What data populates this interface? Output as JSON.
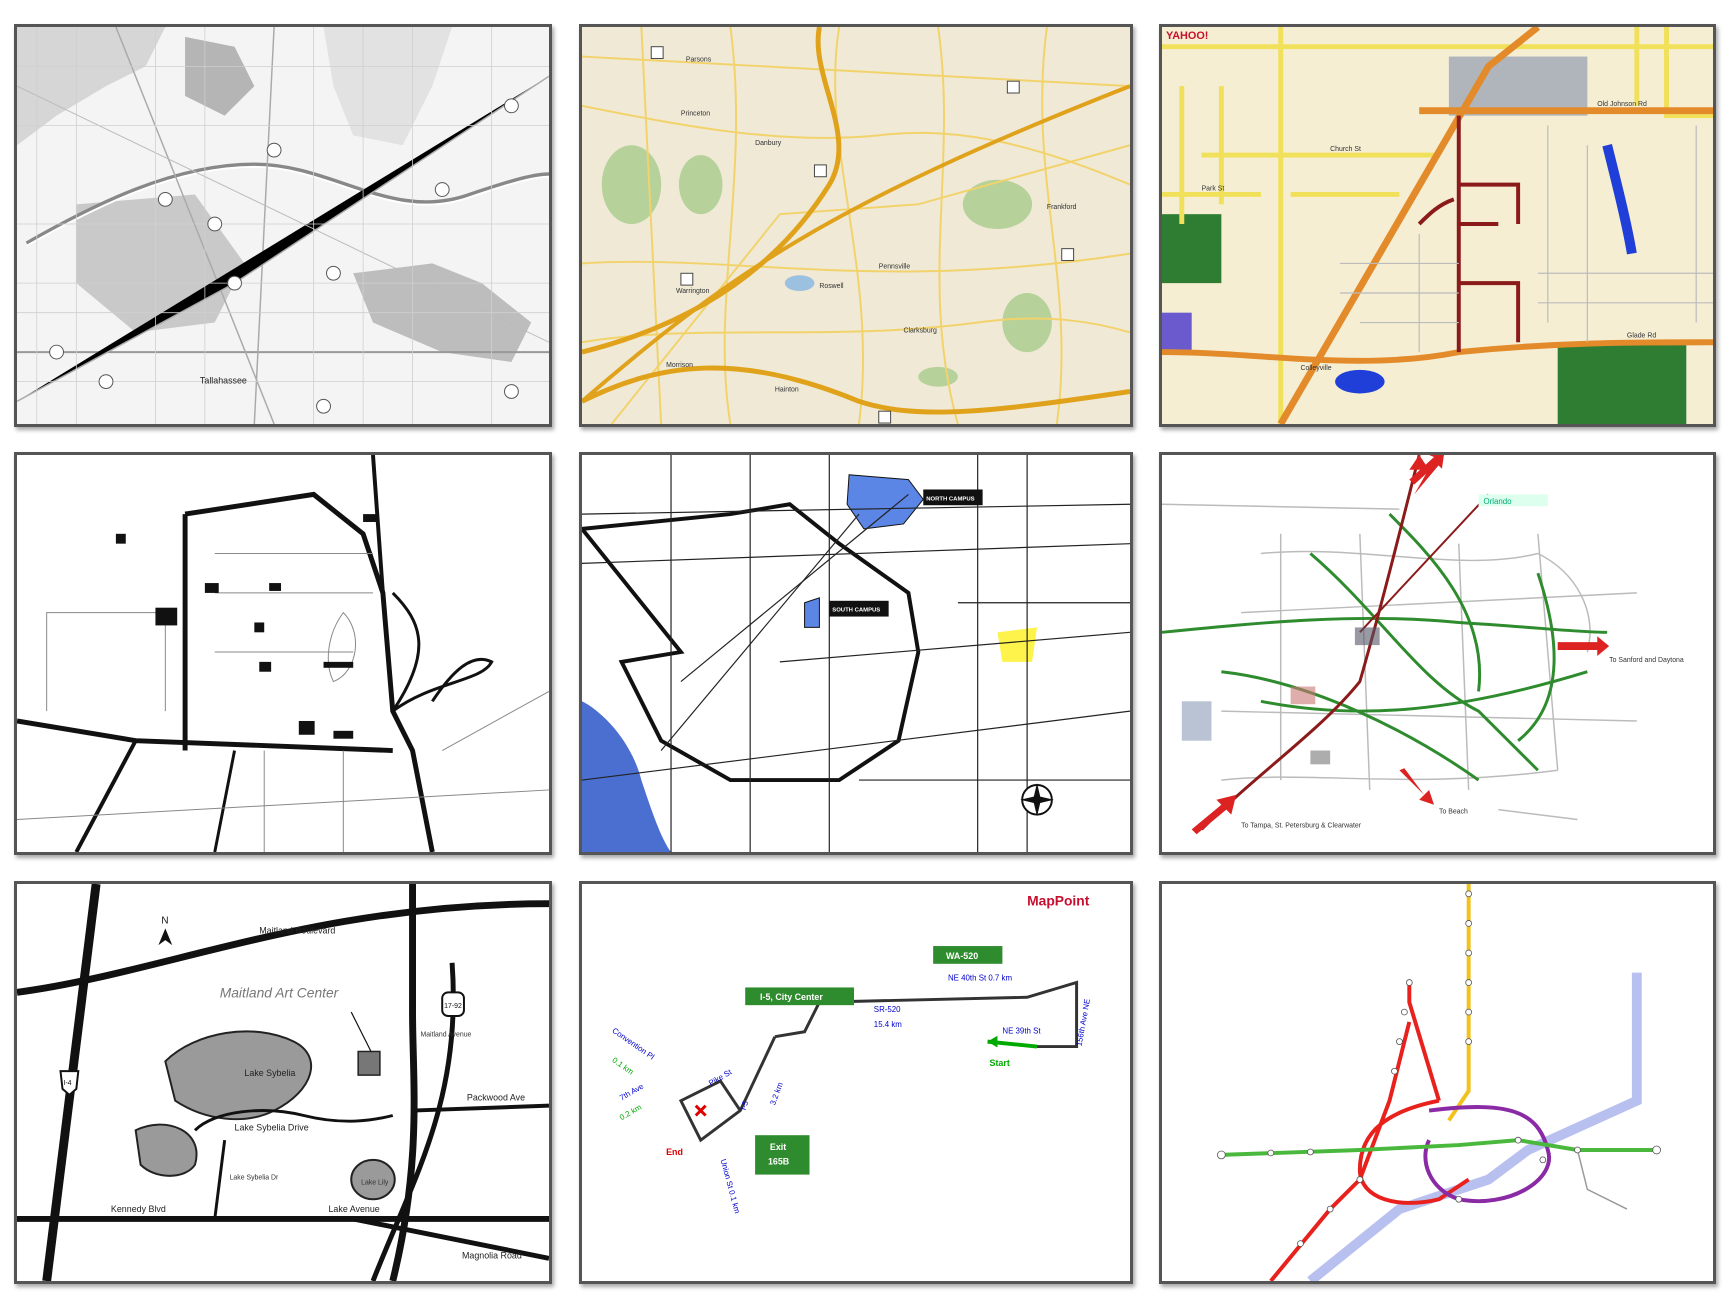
{
  "panels": [
    {
      "id": "p1",
      "labels": {
        "city": "Tallahassee"
      }
    },
    {
      "id": "p2",
      "labels": {
        "a": "Parsons",
        "b": "Danbury",
        "c": "Princeton",
        "d": "Roswell",
        "e": "Clarksburg",
        "f": "Pennsville",
        "g": "Warrington",
        "h": "Frankford",
        "i": "Morrison",
        "j": "Hainton"
      }
    },
    {
      "id": "p3",
      "labels": {
        "brand": "YAHOO!",
        "road1": "Old Johnson Rd",
        "road2": "Glade Rd",
        "road3": "Church St",
        "road4": "Park St",
        "road5": "Colleyville"
      }
    },
    {
      "id": "p4",
      "labels": {}
    },
    {
      "id": "p5",
      "labels": {
        "campus1": "NORTH CAMPUS",
        "campus2": "SOUTH CAMPUS"
      }
    },
    {
      "id": "p6",
      "labels": {
        "l1": "Orlando",
        "l2": "To Sanford and Daytona",
        "l3": "To Tampa, St. Petersburg & Clearwater",
        "l4": "To Beach"
      }
    },
    {
      "id": "p7",
      "labels": {
        "north": "N",
        "title": "Maitland Art Center",
        "lake": "Lake Sybelia",
        "lily": "Lake Lily",
        "blvd": "Maitland Boulevard",
        "ave": "Maitland Avenue",
        "packwood": "Packwood Ave",
        "sybdrive": "Lake Sybelia Drive",
        "kennedy": "Kennedy Blvd",
        "lakeave": "Lake Avenue",
        "magnolia": "Magnolia Road",
        "i4": "I-4",
        "r1792": "17-92",
        "sybdr": "Lake Sybelia Dr"
      }
    },
    {
      "id": "p8",
      "labels": {
        "brand": "MapPoint",
        "wa520": "WA-520",
        "i5": "I-5, City Center",
        "sr520": "SR-520",
        "km154": "15.4 km",
        "ne40": "NE 40th St 0.7 km",
        "ne39": "NE 39th St",
        "ave156": "156th Ave NE",
        "start": "Start",
        "convention": "Convention Pl",
        "km01": "0.1 km",
        "pike": "Pike St",
        "i5b": "I-5",
        "km32": "3.2 km",
        "ave7": "7th Ave",
        "km02": "0.2 km",
        "end": "End",
        "exit": "Exit",
        "exitnum": "165B",
        "union": "Union St 0.1 km"
      }
    },
    {
      "id": "p9",
      "labels": {}
    }
  ]
}
